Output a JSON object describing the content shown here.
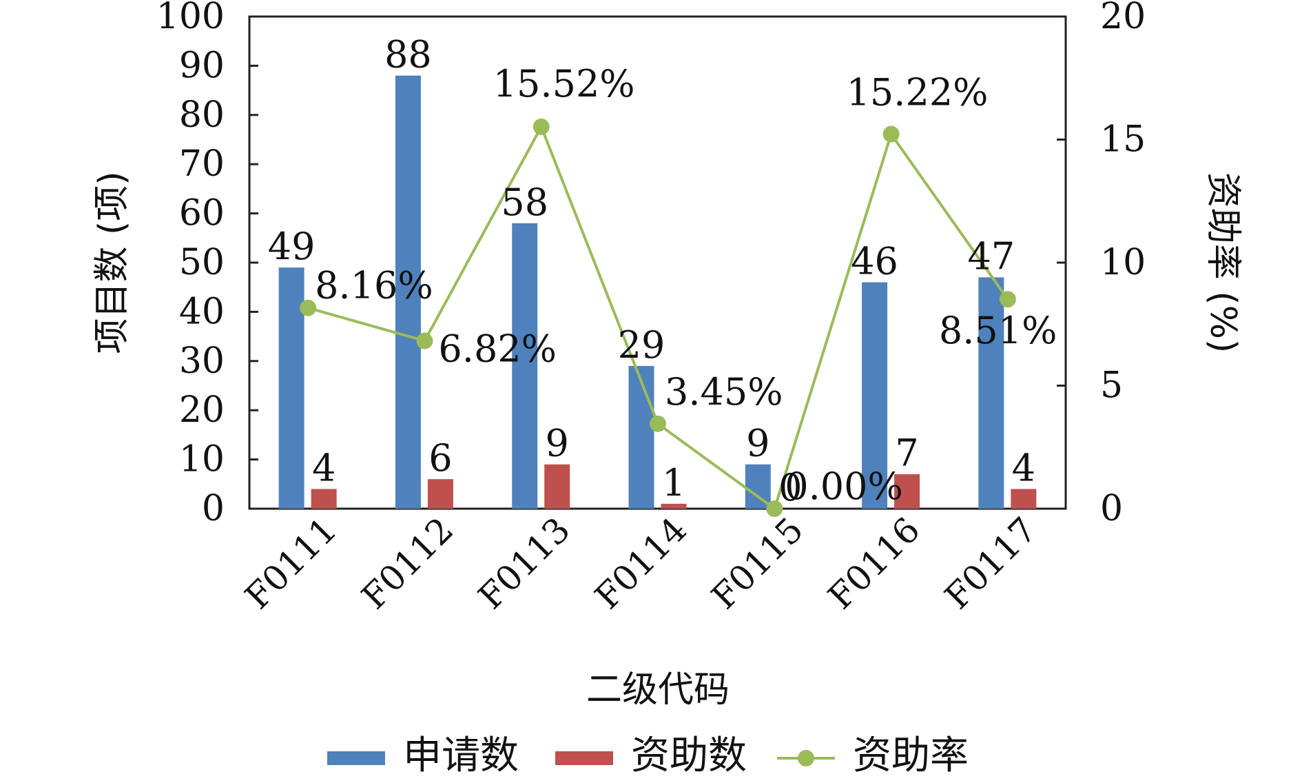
{
  "chart_data": {
    "type": "bar",
    "categories": [
      "F0111",
      "F0112",
      "F0113",
      "F0114",
      "F0115",
      "F0116",
      "F0117"
    ],
    "series": [
      {
        "name": "申请数",
        "kind": "bar",
        "axis": "left",
        "color": "#4f81bd",
        "values": [
          49,
          88,
          58,
          29,
          9,
          46,
          47
        ],
        "labels": [
          "49",
          "88",
          "58",
          "29",
          "9",
          "46",
          "47"
        ]
      },
      {
        "name": "资助数",
        "kind": "bar",
        "axis": "left",
        "color": "#c0504d",
        "values": [
          4,
          6,
          9,
          1,
          0,
          7,
          4
        ],
        "labels": [
          "4",
          "6",
          "9",
          "1",
          "0",
          "7",
          "4"
        ]
      },
      {
        "name": "资助率",
        "kind": "line",
        "axis": "right",
        "color": "#9bbb59",
        "values": [
          8.16,
          6.82,
          15.52,
          3.45,
          0.0,
          15.22,
          8.51
        ],
        "labels": [
          "8.16%",
          "6.82%",
          "15.52%",
          "3.45%",
          "0.00%",
          "15.22%",
          "8.51%"
        ]
      }
    ],
    "xlabel": "二级代码",
    "ylabel": "项目数 (项)",
    "y2label": "资助率 (%)",
    "ylim": [
      0,
      100
    ],
    "y2lim": [
      0,
      20
    ],
    "yticks": [
      "0",
      "10",
      "20",
      "30",
      "40",
      "50",
      "60",
      "70",
      "80",
      "90",
      "100"
    ],
    "y2ticks": [
      "0",
      "5",
      "10",
      "15",
      "20"
    ],
    "grid": false,
    "legend": "bottom"
  }
}
